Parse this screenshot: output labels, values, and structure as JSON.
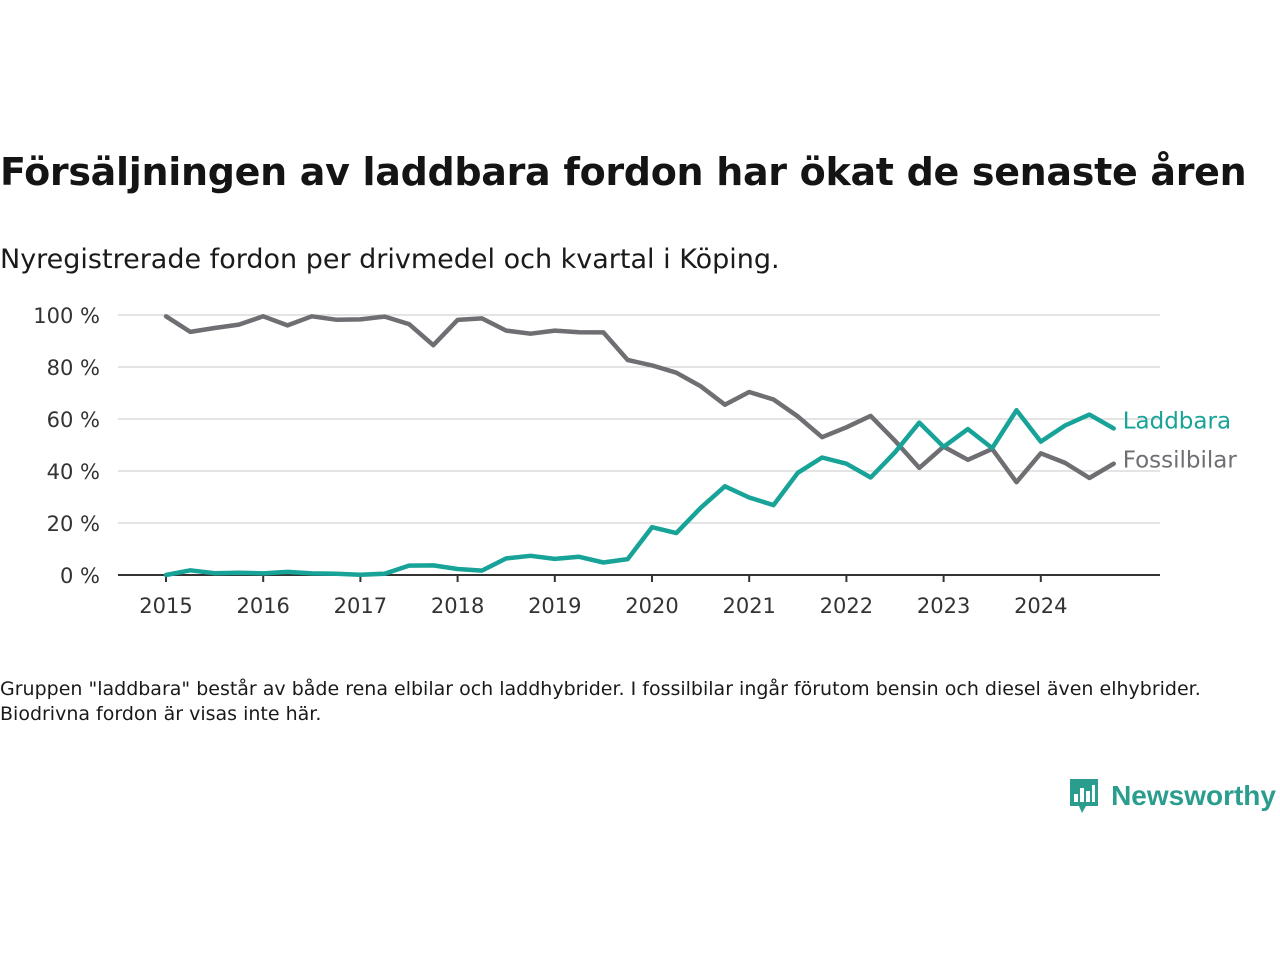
{
  "title": "Försäljningen av laddbara fordon har ökat de senaste åren",
  "subtitle": "Nyregistrerade fordon per drivmedel och kvartal i Köping.",
  "note": "Gruppen \"laddbara\" består av både rena elbilar och laddhybrider. I fossilbilar ingår förutom bensin och diesel även elhybrider. Biodrivna fordon är visas inte här.",
  "brand": {
    "name": "Newsworthy",
    "icon": "newsworthy-logo-icon",
    "color": "#2a9d8f"
  },
  "chart_data": {
    "type": "line",
    "x_start": 2015,
    "x_step": "quarter",
    "x_tick_labels": [
      "2015",
      "2016",
      "2017",
      "2018",
      "2019",
      "2020",
      "2021",
      "2022",
      "2023",
      "2024"
    ],
    "y_tick_labels": [
      "0 %",
      "20 %",
      "40 %",
      "60 %",
      "80 %",
      "100 %"
    ],
    "ylim": [
      0,
      100
    ],
    "grid": true,
    "legend": "direct labels at line ends",
    "series": [
      {
        "name": "Fossilbilar",
        "color": "#6e6e73",
        "values": [
          99.5,
          93.5,
          95,
          96.3,
          99.5,
          96,
          99.5,
          98.2,
          98.3,
          99.4,
          96.5,
          88.4,
          98.1,
          98.7,
          94,
          92.8,
          94,
          93.4,
          93.3,
          82.7,
          80.6,
          77.8,
          72.6,
          65.5,
          70.4,
          67.5,
          61,
          53,
          56.8,
          61.2,
          51.6,
          41.2,
          49.4,
          44.3,
          48.5,
          35.7,
          46.8,
          43.1,
          37.3,
          42.8
        ]
      },
      {
        "name": "Laddbara",
        "color": "#17a398",
        "values": [
          0,
          1.8,
          0.7,
          0.9,
          0.6,
          1.2,
          0.6,
          0.5,
          0.1,
          0.5,
          3.6,
          3.7,
          2.3,
          1.7,
          6.4,
          7.4,
          6.2,
          7.0,
          4.8,
          6.1,
          18.4,
          16.1,
          25.8,
          34.1,
          29.8,
          26.9,
          39.3,
          45.2,
          42.8,
          37.5,
          47.2,
          58.6,
          49.3,
          56.1,
          48.8,
          63.4,
          51.3,
          57.5,
          61.7,
          56.4
        ]
      }
    ]
  }
}
